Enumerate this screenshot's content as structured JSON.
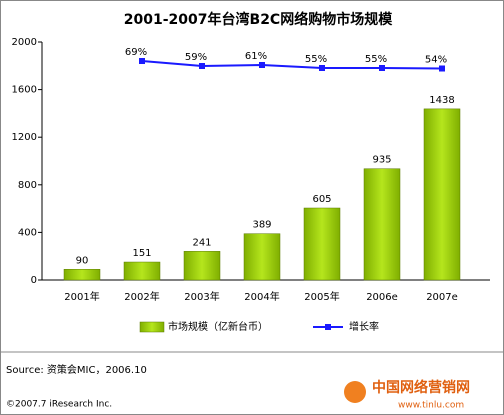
{
  "chart_data": {
    "type": "bar",
    "title": "2001-2007年台湾B2C网络购物市场规模",
    "categories": [
      "2001年",
      "2002年",
      "2003年",
      "2004年",
      "2005年",
      "2006e",
      "2007e"
    ],
    "series": [
      {
        "name": "市场规模（亿新台币）",
        "type": "bar",
        "color": "#99cc00",
        "values": [
          90,
          151,
          241,
          389,
          605,
          935,
          1438
        ]
      },
      {
        "name": "增长率",
        "type": "line",
        "axis": "y2",
        "color": "#1a1aff",
        "values": [
          null,
          69,
          59,
          61,
          55,
          55,
          54
        ],
        "value_labels": [
          null,
          "69%",
          "59%",
          "61%",
          "55%",
          "55%",
          "54%"
        ]
      }
    ],
    "ylim": [
      0,
      2000
    ],
    "yticks": [
      0,
      400,
      800,
      1200,
      1600,
      2000
    ],
    "y2lim": [
      -369,
      107
    ],
    "grid": false,
    "legend": "bottom"
  },
  "source": "Source:  资策会MIC，2006.10",
  "copyright": "©2007.7 iResearch Inc.",
  "watermark": {
    "name": "中国网络营销网",
    "url": "www.tinlu.com"
  }
}
